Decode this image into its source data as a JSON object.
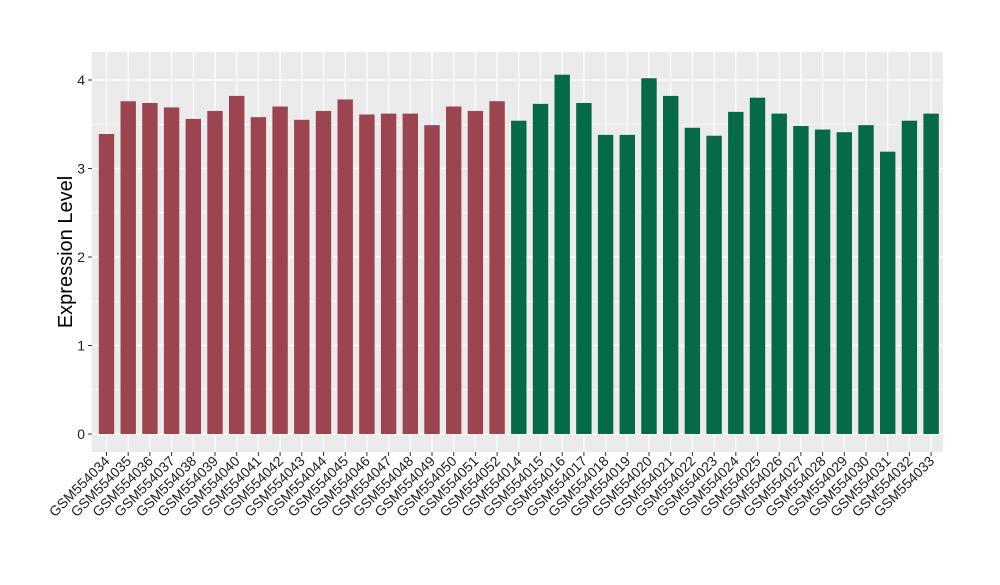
{
  "chart_data": {
    "type": "bar",
    "ylabel": "Expression Level",
    "ylim": [
      0,
      4.2
    ],
    "yticks": [
      "0",
      "1",
      "2",
      "3",
      "4"
    ],
    "grid": true,
    "background": "#EBEBEB",
    "gridline_color": "#FFFFFF",
    "group_colors": [
      "#9C4450",
      "#046A48"
    ],
    "categories": [
      "GSM554034",
      "GSM554035",
      "GSM554036",
      "GSM554037",
      "GSM554038",
      "GSM554039",
      "GSM554040",
      "GSM554041",
      "GSM554042",
      "GSM554043",
      "GSM554044",
      "GSM554045",
      "GSM554046",
      "GSM554047",
      "GSM554048",
      "GSM554049",
      "GSM554050",
      "GSM554051",
      "GSM554052",
      "GSM554014",
      "GSM554015",
      "GSM554016",
      "GSM554017",
      "GSM554018",
      "GSM554019",
      "GSM554020",
      "GSM554021",
      "GSM554022",
      "GSM554023",
      "GSM554024",
      "GSM554025",
      "GSM554026",
      "GSM554027",
      "GSM554028",
      "GSM554029",
      "GSM554030",
      "GSM554031",
      "GSM554032",
      "GSM554033"
    ],
    "values": [
      3.39,
      3.76,
      3.74,
      3.69,
      3.56,
      3.65,
      3.82,
      3.58,
      3.7,
      3.55,
      3.65,
      3.78,
      3.61,
      3.62,
      3.62,
      3.49,
      3.7,
      3.65,
      3.76,
      3.54,
      3.73,
      4.06,
      3.74,
      3.38,
      3.38,
      4.02,
      3.82,
      3.46,
      3.37,
      3.64,
      3.8,
      3.62,
      3.48,
      3.44,
      3.41,
      3.49,
      3.19,
      3.54,
      3.62
    ],
    "group": [
      0,
      0,
      0,
      0,
      0,
      0,
      0,
      0,
      0,
      0,
      0,
      0,
      0,
      0,
      0,
      0,
      0,
      0,
      0,
      1,
      1,
      1,
      1,
      1,
      1,
      1,
      1,
      1,
      1,
      1,
      1,
      1,
      1,
      1,
      1,
      1,
      1,
      1,
      1
    ]
  }
}
